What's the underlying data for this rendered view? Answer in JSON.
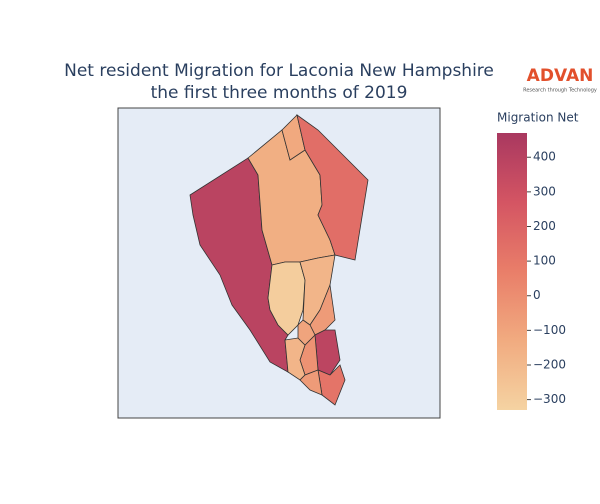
{
  "chart_data": {
    "type": "choropleth",
    "title": [
      "Net resident Migration for Laconia New Hampshire",
      "the first three months of 2019"
    ],
    "logo": {
      "name": "ADVAN",
      "tagline": "Research through Technology"
    },
    "colorbar_title": "Migration Net",
    "values": [
      390,
      -150,
      -120,
      150,
      -300,
      -180,
      -60,
      380,
      -20,
      120,
      -180,
      -60,
      -100
    ],
    "zlim": [
      -330,
      470
    ],
    "zticks": [
      400,
      300,
      200,
      100,
      0,
      {
        "value": -100,
        "label": "−100"
      },
      {
        "value": -200,
        "label": "−200"
      },
      {
        "value": -300,
        "label": "−300"
      }
    ],
    "colorscale": [
      "#f5d3a2",
      "#f1ab80",
      "#e97e69",
      "#d45563",
      "#a93860"
    ]
  }
}
